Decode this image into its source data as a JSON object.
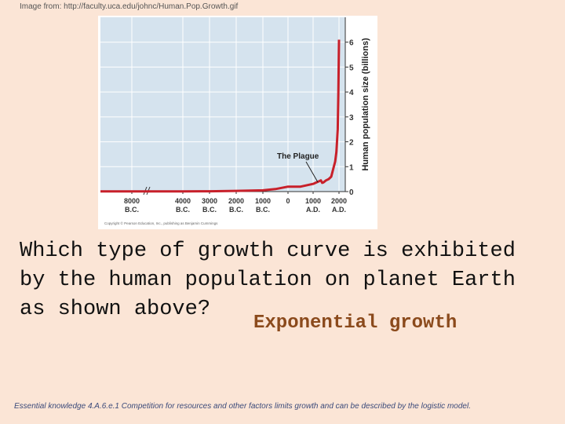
{
  "source_note": "Image from: http://faculty.uca.edu/johnc/Human.Pop.Growth.gif",
  "chart_data": {
    "type": "line",
    "ylabel": "Human population size (billions)",
    "annotation": "The Plague",
    "copyright": "Copyright © Pearson Education, Inc., publishing as Benjamin Cummings",
    "x": [
      -10500,
      -8000,
      -6000,
      -4000,
      -3000,
      -2000,
      -1000,
      -500,
      0,
      500,
      1000,
      1200,
      1300,
      1350,
      1400,
      1500,
      1600,
      1700,
      1800,
      1850,
      1900,
      1950,
      1975,
      2000
    ],
    "series": [
      {
        "name": "Human population",
        "color": "#c8202a",
        "values": [
          0.005,
          0.005,
          0.006,
          0.007,
          0.014,
          0.027,
          0.05,
          0.1,
          0.2,
          0.2,
          0.31,
          0.4,
          0.45,
          0.35,
          0.37,
          0.45,
          0.5,
          0.6,
          1.0,
          1.2,
          1.6,
          2.5,
          4.0,
          6.1
        ]
      }
    ],
    "xlim": [
      -10500,
      2240
    ],
    "xticks": [
      {
        "value": -8000,
        "label": "8000\nB.C."
      },
      {
        "value": -4000,
        "label": "4000\nB.C."
      },
      {
        "value": -3000,
        "label": "3000\nB.C."
      },
      {
        "value": -2000,
        "label": "2000\nB.C."
      },
      {
        "value": -1000,
        "label": "1000\nB.C."
      },
      0,
      {
        "value": 1000,
        "label": "1000\nA.D."
      },
      {
        "value": 2000,
        "label": "2000\nA.D."
      }
    ],
    "ylim": [
      0,
      7
    ],
    "yticks": [
      0,
      1,
      2,
      3,
      4,
      5,
      6
    ],
    "grid": true
  },
  "question": "Which type of growth curve is exhibited by the human population on planet Earth as shown above?",
  "answer": "Exponential growth",
  "footer": "Essential knowledge 4.A.6.e.1 Competition for resources and other factors limits growth and can be described by the logistic model."
}
